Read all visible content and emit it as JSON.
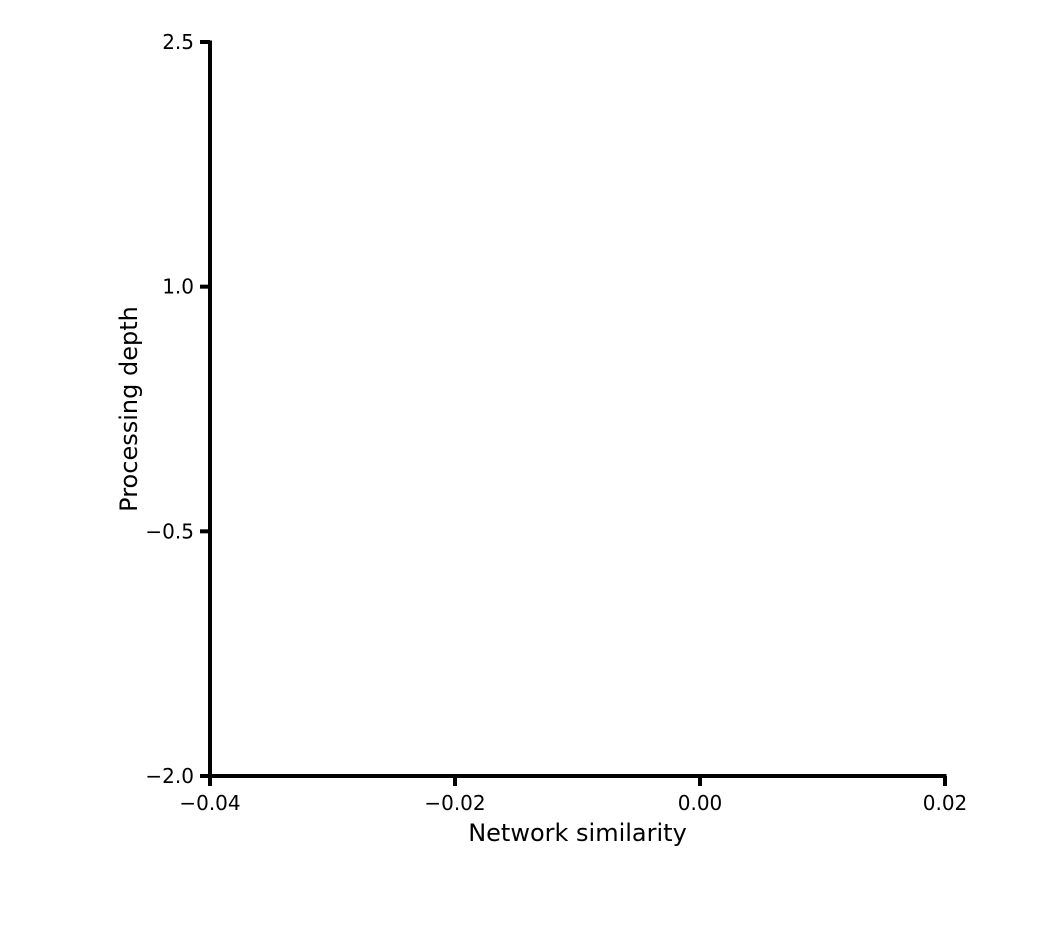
{
  "chart_data": {
    "type": "scatter",
    "title": "",
    "xlabel": "Network similarity",
    "ylabel": "Processing depth",
    "xlim": [
      -0.04,
      0.02
    ],
    "ylim": [
      -2.0,
      2.5
    ],
    "x_ticks": [
      -0.04,
      -0.02,
      0.0,
      0.02
    ],
    "x_tick_labels": [
      "−0.04",
      "−0.02",
      "0.00",
      "0.02"
    ],
    "y_ticks": [
      -2.0,
      -0.5,
      1.0,
      2.5
    ],
    "y_tick_labels": [
      "−2.0",
      "−0.5",
      "1.0",
      "2.5"
    ],
    "grid": false,
    "series": [],
    "colors": {
      "axis": "#000000",
      "background": "#ffffff"
    }
  }
}
